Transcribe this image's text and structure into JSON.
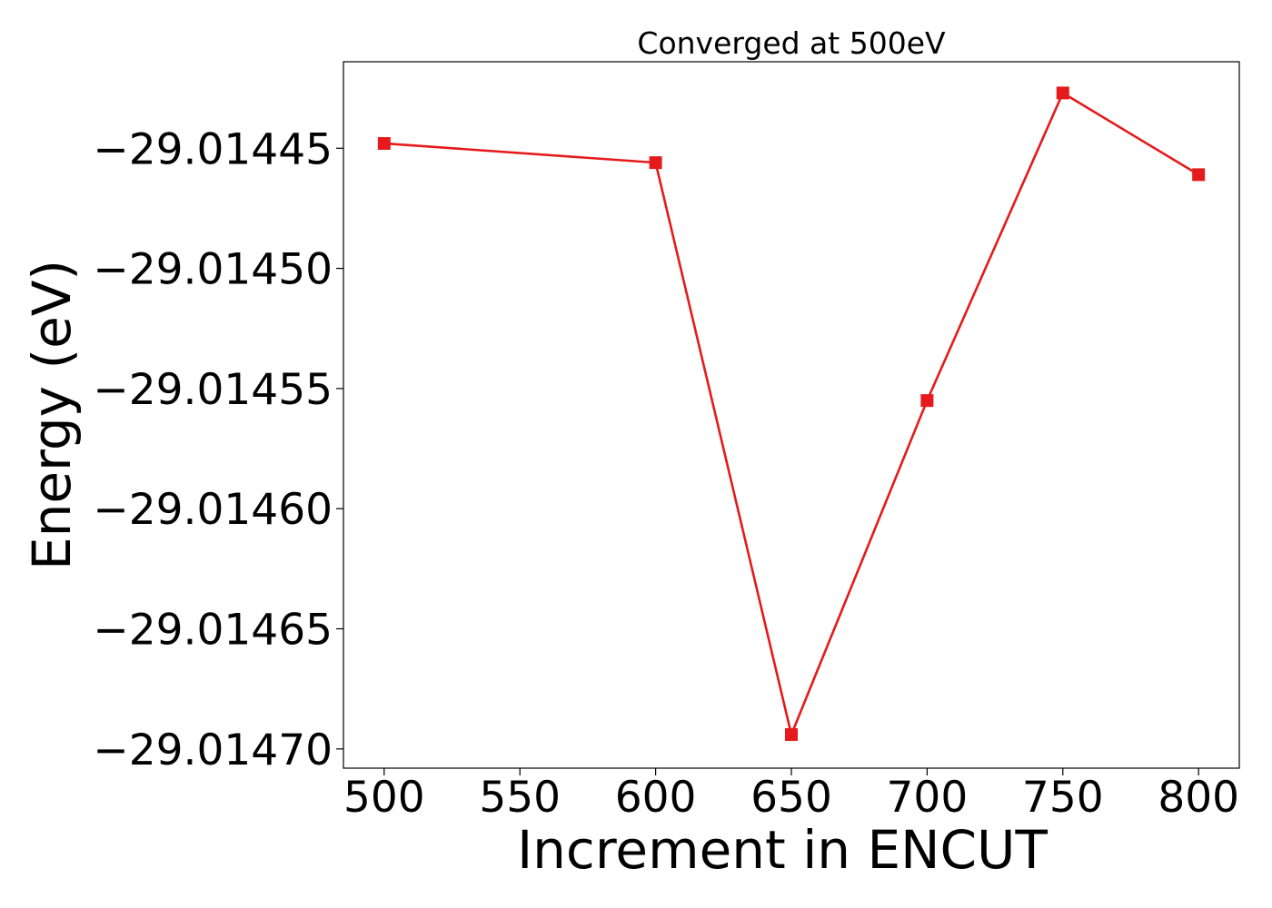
{
  "chart_data": {
    "type": "line",
    "title": "Converged at 500eV",
    "xlabel": "Increment in ENCUT",
    "ylabel": "Energy (eV)",
    "x": [
      500,
      600,
      650,
      700,
      750,
      800
    ],
    "series": [
      {
        "values": [
          -29.014448,
          -29.014456,
          -29.014694,
          -29.014555,
          -29.014427,
          -29.014461
        ],
        "color": "#e41a1c",
        "marker": "square"
      }
    ],
    "xticks": [
      500,
      550,
      600,
      650,
      700,
      750,
      800
    ],
    "xtick_labels": [
      "500",
      "550",
      "600",
      "650",
      "700",
      "750",
      "800"
    ],
    "yticks": [
      -29.01445,
      -29.0145,
      -29.01455,
      -29.0146,
      -29.01465,
      -29.0147
    ],
    "ytick_labels": [
      "−29.01445",
      "−29.01450",
      "−29.01455",
      "−29.01460",
      "−29.01465",
      "−29.01470"
    ],
    "xlim": [
      485,
      815
    ],
    "ylim": [
      -29.014708,
      -29.014414
    ],
    "grid": false,
    "legend": false
  }
}
